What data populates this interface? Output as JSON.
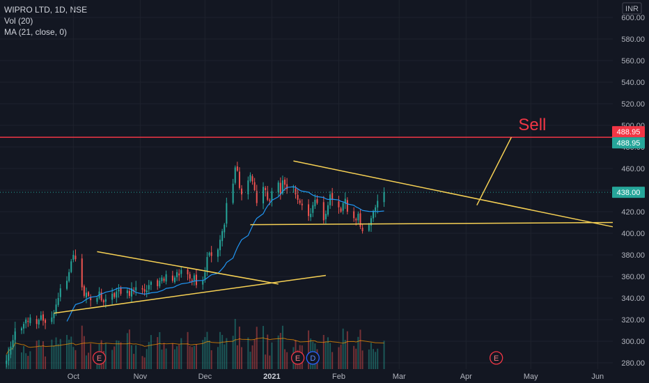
{
  "legend": {
    "symbol": "WIPRO LTD, 1D, NSE",
    "volume": "Vol (20)",
    "ma": "MA (21, close, 0)"
  },
  "currency": "INR",
  "annotation": "Sell",
  "colors": {
    "background": "#131722",
    "up": "#26a69a",
    "down": "#ef5350",
    "ma": "#2196f3",
    "trendline": "#f7d154",
    "resistance": "#f23645",
    "grid": "#1e222d",
    "text": "#b2b5be"
  },
  "chart_data": {
    "type": "candlestick",
    "y_axis": {
      "min": 280,
      "max": 600,
      "ticks": [
        280,
        300,
        320,
        340,
        360,
        380,
        400,
        420,
        440,
        460,
        480,
        500,
        520,
        540,
        560,
        580,
        600
      ],
      "tick_labels": [
        "280.00",
        "300.00",
        "320.00",
        "340.00",
        "360.00",
        "380.00",
        "400.00",
        "420.00",
        "440.00",
        "460.00",
        "480.00",
        "500.00",
        "520.00",
        "540.00",
        "560.00",
        "580.00",
        "600.00"
      ]
    },
    "x_axis": {
      "labels": [
        {
          "text": "Oct",
          "date": "2020-10-01"
        },
        {
          "text": "Nov",
          "date": "2020-11-01"
        },
        {
          "text": "Dec",
          "date": "2020-12-01"
        },
        {
          "text": "2021",
          "date": "2021-01-01"
        },
        {
          "text": "Feb",
          "date": "2021-02-01"
        },
        {
          "text": "Mar",
          "date": "2021-03-01"
        },
        {
          "text": "Apr",
          "date": "2021-04-01"
        },
        {
          "text": "May",
          "date": "2021-05-01"
        },
        {
          "text": "Jun",
          "date": "2021-06-01"
        }
      ]
    },
    "price_labels": [
      {
        "value": 488.95,
        "text": "488.95",
        "color": "#f23645"
      },
      {
        "value": 488.95,
        "text": "488.95",
        "color": "#26a69a"
      },
      {
        "value": 438.0,
        "text": "438.00",
        "color": "#26a69a"
      }
    ],
    "last_price": 438.0,
    "resistance_level": 488.95,
    "closes": [
      282,
      288,
      295,
      301,
      309,
      312,
      316,
      320,
      318,
      322,
      316,
      320,
      324,
      319,
      317,
      322,
      326,
      334,
      340,
      349,
      356,
      364,
      374,
      380,
      376,
      350,
      342,
      345,
      342,
      338,
      340,
      346,
      338,
      336,
      339,
      344,
      341,
      346,
      348,
      344,
      347,
      342,
      349,
      346,
      350,
      348,
      346,
      347,
      352,
      355,
      351,
      356,
      359,
      356,
      362,
      356,
      359,
      364,
      361,
      366,
      362,
      358,
      356,
      361,
      352,
      356,
      364,
      378,
      382,
      379,
      385,
      394,
      402,
      408,
      428,
      446,
      461,
      458,
      442,
      436,
      449,
      454,
      448,
      440,
      428,
      443,
      440,
      431,
      430,
      439,
      447,
      436,
      449,
      445,
      441,
      443,
      436,
      431,
      428,
      426,
      416,
      418,
      426,
      431,
      428,
      412,
      418,
      426,
      436,
      431,
      424,
      420,
      428,
      432,
      420,
      414,
      412,
      418,
      406,
      402,
      408,
      414,
      420,
      424,
      430,
      438
    ],
    "events": [
      {
        "label": "E",
        "date": "2020-10-13",
        "color": "#f23645"
      },
      {
        "label": "E",
        "date": "2021-01-13",
        "color": "#f23645"
      },
      {
        "label": "D",
        "date": "2021-01-20",
        "color": "#2962ff"
      },
      {
        "label": "E",
        "date": "2021-04-15",
        "color": "#f23645"
      }
    ],
    "trendlines": [
      {
        "name": "triangle-1-upper",
        "from": {
          "date": "2020-10-12",
          "price": 383
        },
        "to": {
          "date": "2021-01-04",
          "price": 353
        }
      },
      {
        "name": "triangle-1-lower",
        "from": {
          "date": "2020-09-22",
          "price": 326
        },
        "to": {
          "date": "2021-01-26",
          "price": 361
        }
      },
      {
        "name": "triangle-2-upper",
        "from": {
          "date": "2021-01-11",
          "price": 467
        },
        "to": {
          "date": "2021-06-08",
          "price": 406
        }
      },
      {
        "name": "triangle-2-base",
        "from": {
          "date": "2020-12-22",
          "price": 408
        },
        "to": {
          "date": "2021-06-08",
          "price": 410
        }
      },
      {
        "name": "projection",
        "from": {
          "date": "2021-04-06",
          "price": 426
        },
        "to": {
          "date": "2021-04-22",
          "price": 489
        }
      }
    ]
  }
}
